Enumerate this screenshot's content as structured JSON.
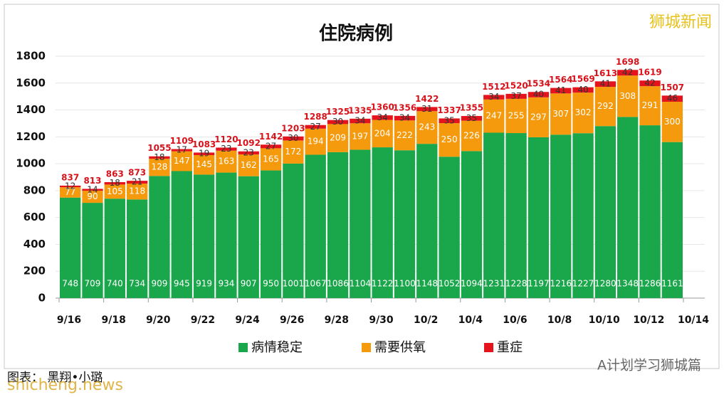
{
  "chart_data": {
    "type": "stacked_bar",
    "title": "住院病例",
    "xtick_labels": [
      "9/16",
      "9/18",
      "9/20",
      "9/22",
      "9/24",
      "9/26",
      "9/28",
      "9/30",
      "10/2",
      "10/4",
      "10/6",
      "10/8",
      "10/10",
      "10/12",
      "10/14"
    ],
    "series": [
      {
        "name": "病情稳定",
        "color": "#1aa64a",
        "values": [
          748,
          709,
          740,
          734,
          909,
          945,
          919,
          934,
          907,
          950,
          1001,
          1067,
          1086,
          1104,
          1122,
          1100,
          1148,
          1052,
          1094,
          1231,
          1228,
          1197,
          1216,
          1227,
          1280,
          1348,
          1286,
          1161
        ]
      },
      {
        "name": "需要供氧",
        "color": "#f59a0c",
        "values": [
          77,
          90,
          105,
          118,
          128,
          147,
          145,
          163,
          162,
          165,
          172,
          194,
          209,
          197,
          204,
          222,
          243,
          250,
          226,
          247,
          255,
          297,
          307,
          302,
          292,
          308,
          291,
          300
        ]
      },
      {
        "name": "重症",
        "color": "#e5141c",
        "values": [
          12,
          14,
          18,
          21,
          18,
          17,
          19,
          23,
          23,
          27,
          30,
          27,
          30,
          34,
          34,
          34,
          31,
          35,
          35,
          34,
          37,
          40,
          41,
          40,
          41,
          42,
          42,
          46
        ]
      }
    ],
    "totals": [
      837,
      813,
      863,
      873,
      1055,
      1109,
      1083,
      1120,
      1092,
      1142,
      1203,
      1288,
      1325,
      1335,
      1360,
      1356,
      1422,
      1337,
      1355,
      1512,
      1520,
      1534,
      1564,
      1569,
      1613,
      1698,
      1619,
      1507
    ],
    "ylim": [
      0,
      1800
    ],
    "yticks": [
      0,
      200,
      400,
      600,
      800,
      1000,
      1200,
      1400,
      1600,
      1800
    ],
    "grid": true,
    "watermark": "狮城新闻",
    "credit": "图表： 黑翔•小璐",
    "site": "shicheng.news",
    "wechat": "A计划学习狮城篇"
  }
}
